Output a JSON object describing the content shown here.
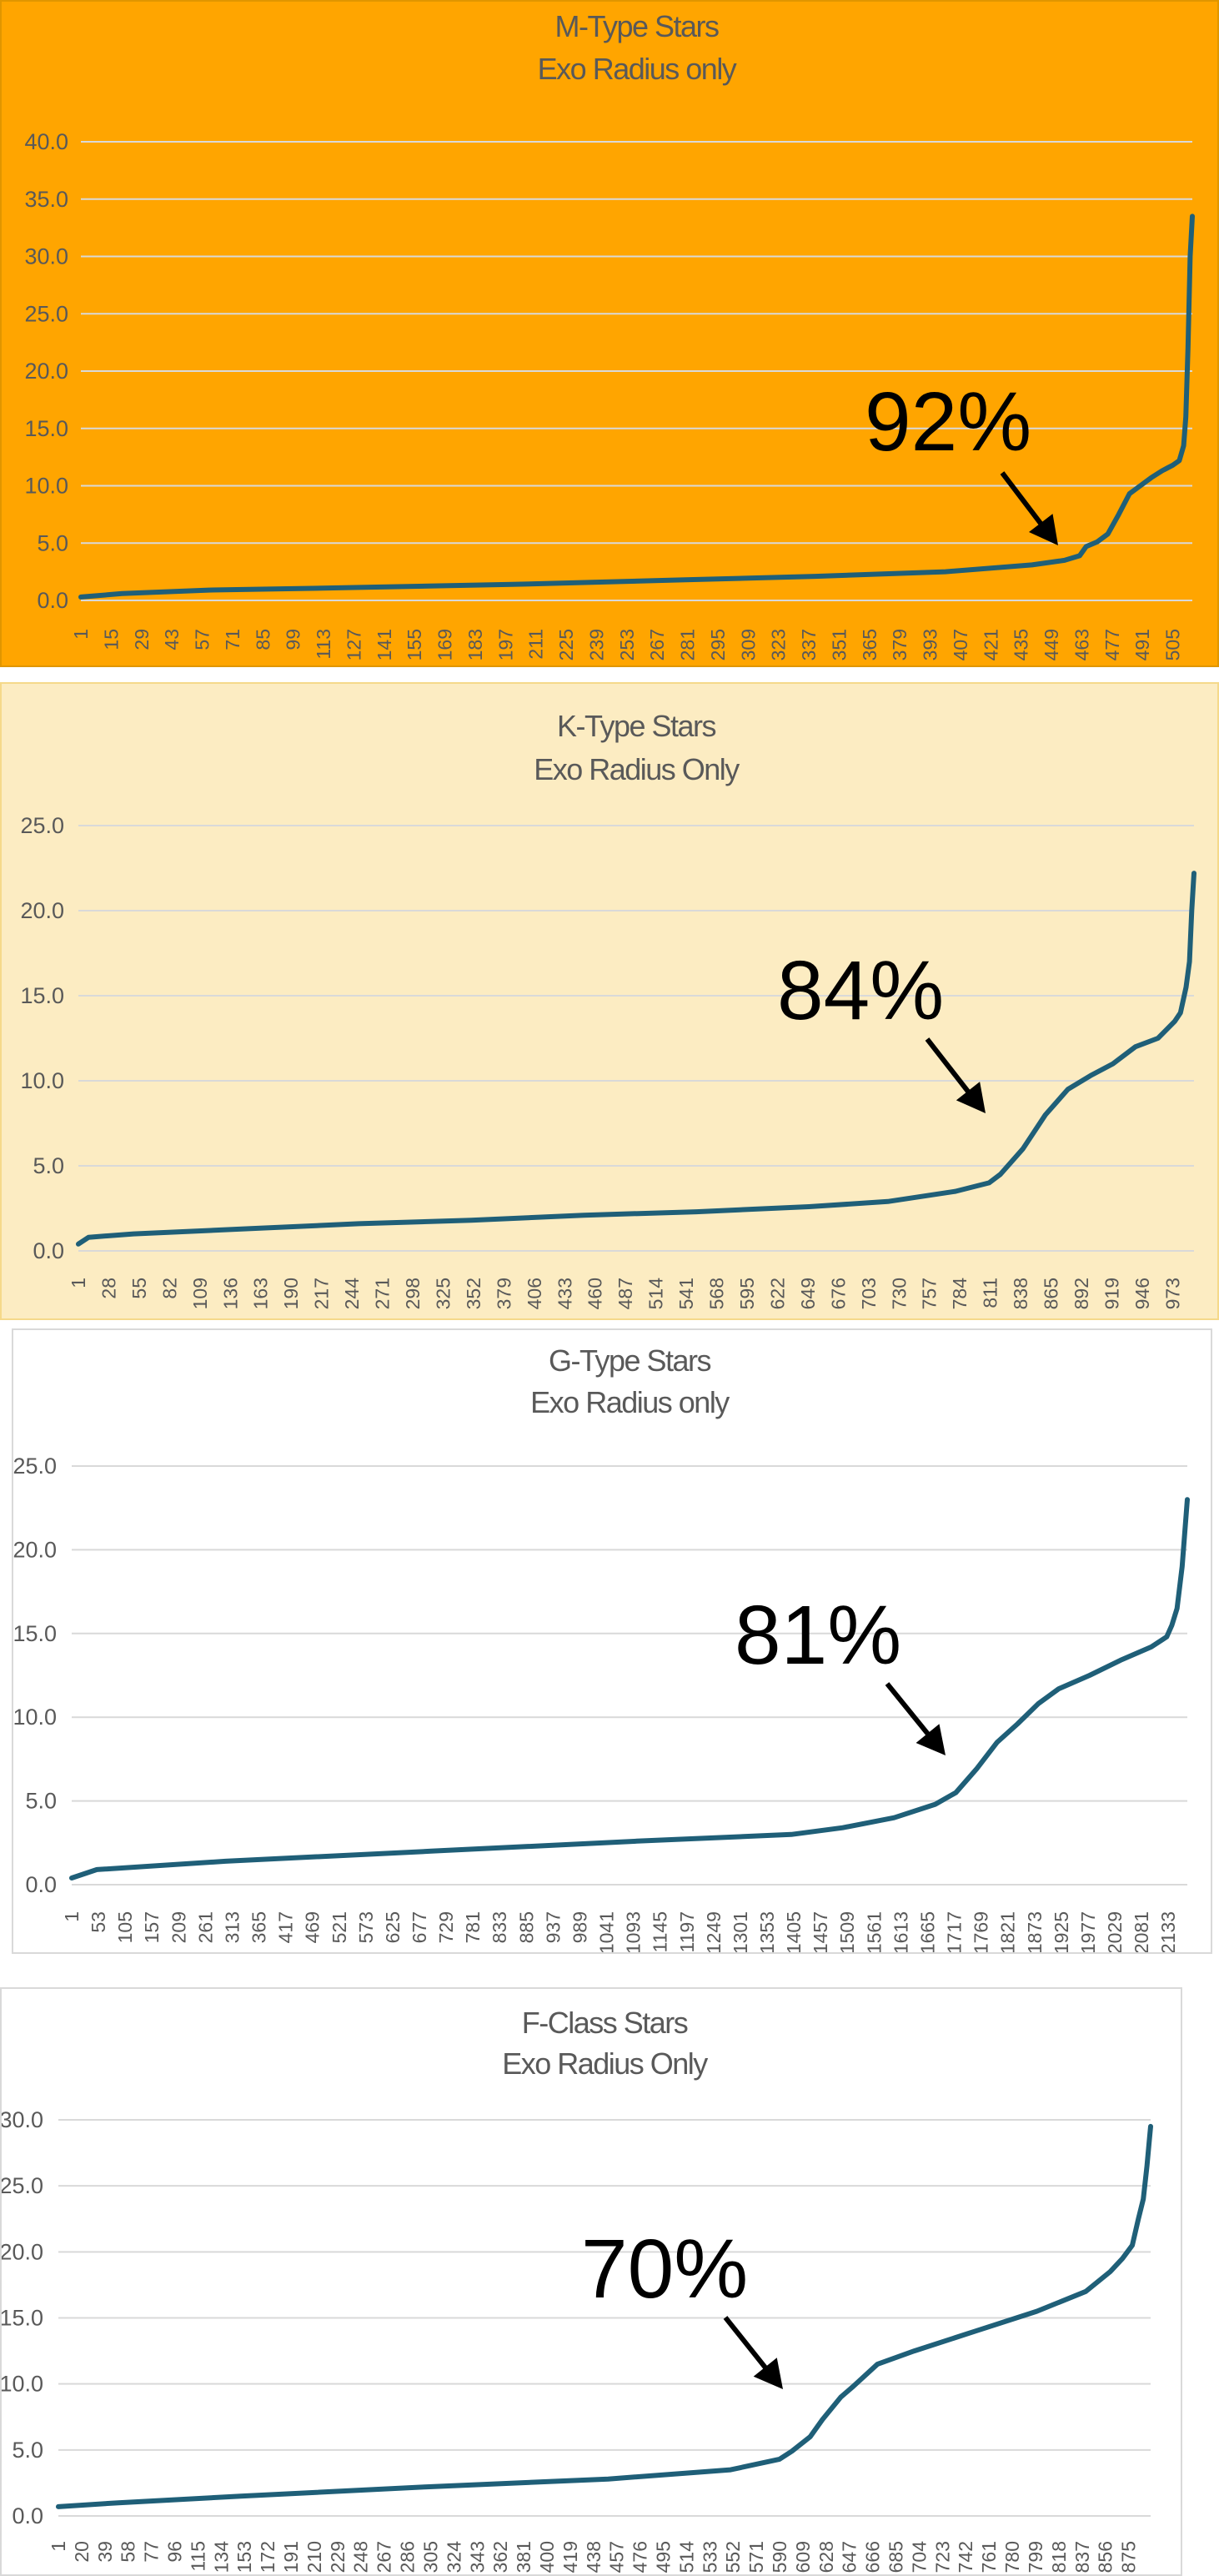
{
  "chart_data": [
    {
      "type": "line",
      "title": "M-Type Stars",
      "subtitle": "Exo Radius only",
      "ylim": [
        0,
        40
      ],
      "y_ticks": [
        "0.0",
        "5.0",
        "10.0",
        "15.0",
        "20.0",
        "25.0",
        "30.0",
        "35.0",
        "40.0"
      ],
      "x_ticks": [
        "1",
        "15",
        "29",
        "43",
        "57",
        "71",
        "85",
        "99",
        "113",
        "127",
        "141",
        "155",
        "169",
        "183",
        "197",
        "211",
        "225",
        "239",
        "253",
        "267",
        "281",
        "295",
        "309",
        "323",
        "337",
        "351",
        "365",
        "379",
        "393",
        "407",
        "421",
        "435",
        "449",
        "463",
        "477",
        "491",
        "505"
      ],
      "x_range": [
        1,
        514
      ],
      "series": [
        {
          "x": [
            1,
            20,
            60,
            120,
            200,
            280,
            340,
            400,
            440,
            455,
            462,
            465,
            470,
            475,
            480,
            485,
            490,
            495,
            500,
            505,
            508,
            510,
            511,
            512,
            513,
            514
          ],
          "values": [
            0.3,
            0.6,
            0.9,
            1.1,
            1.4,
            1.8,
            2.1,
            2.5,
            3.1,
            3.5,
            3.9,
            4.7,
            5.1,
            5.8,
            7.5,
            9.3,
            10.0,
            10.7,
            11.3,
            11.8,
            12.2,
            13.5,
            16.0,
            22.0,
            30.0,
            33.5
          ]
        }
      ],
      "annotation": {
        "text": "92%",
        "x": 461,
        "y": 3.8
      },
      "grid": true,
      "background": "#ffa500",
      "line_color": "#1f5f78"
    },
    {
      "type": "line",
      "title": "K-Type Stars",
      "subtitle": "Exo Radius Only",
      "ylim": [
        0,
        25
      ],
      "y_ticks": [
        "0.0",
        "5.0",
        "10.0",
        "15.0",
        "20.0",
        "25.0"
      ],
      "x_ticks": [
        "1",
        "28",
        "55",
        "82",
        "109",
        "136",
        "163",
        "190",
        "217",
        "244",
        "271",
        "298",
        "325",
        "352",
        "379",
        "406",
        "433",
        "460",
        "487",
        "514",
        "541",
        "568",
        "595",
        "622",
        "649",
        "676",
        "703",
        "730",
        "757",
        "784",
        "811",
        "838",
        "865",
        "892",
        "919",
        "946",
        "973"
      ],
      "x_range": [
        1,
        992
      ],
      "series": [
        {
          "x": [
            1,
            10,
            50,
            150,
            250,
            350,
            450,
            550,
            650,
            720,
            780,
            810,
            820,
            840,
            860,
            880,
            900,
            920,
            940,
            960,
            975,
            980,
            985,
            988,
            990,
            992
          ],
          "values": [
            0.4,
            0.8,
            1.0,
            1.3,
            1.6,
            1.8,
            2.1,
            2.3,
            2.6,
            2.9,
            3.5,
            4.0,
            4.5,
            6.0,
            8.0,
            9.5,
            10.3,
            11.0,
            12.0,
            12.5,
            13.5,
            14.0,
            15.5,
            17.0,
            20.0,
            22.2
          ]
        }
      ],
      "annotation": {
        "text": "84%",
        "x": 815,
        "y": 4.3
      },
      "grid": true,
      "background": "#fcecc2",
      "line_color": "#1f5f78"
    },
    {
      "type": "line",
      "title": "G-Type Stars",
      "subtitle": "Exo Radius only",
      "ylim": [
        0,
        25
      ],
      "y_ticks": [
        "0.0",
        "5.0",
        "10.0",
        "15.0",
        "20.0",
        "25.0"
      ],
      "x_ticks": [
        "1",
        "53",
        "105",
        "157",
        "209",
        "261",
        "313",
        "365",
        "417",
        "469",
        "521",
        "573",
        "625",
        "677",
        "729",
        "781",
        "833",
        "885",
        "937",
        "989",
        "1041",
        "1093",
        "1145",
        "1197",
        "1249",
        "1301",
        "1353",
        "1405",
        "1457",
        "1509",
        "1561",
        "1613",
        "1665",
        "1717",
        "1769",
        "1821",
        "1873",
        "1925",
        "1977",
        "2029",
        "2081",
        "2133"
      ],
      "x_range": [
        1,
        2170
      ],
      "series": [
        {
          "x": [
            1,
            50,
            300,
            700,
            1100,
            1400,
            1500,
            1600,
            1680,
            1720,
            1760,
            1800,
            1840,
            1880,
            1920,
            1980,
            2040,
            2100,
            2130,
            2140,
            2150,
            2160,
            2165,
            2170
          ],
          "values": [
            0.4,
            0.9,
            1.4,
            2.0,
            2.6,
            3.0,
            3.4,
            4.0,
            4.8,
            5.5,
            6.9,
            8.5,
            9.6,
            10.8,
            11.7,
            12.5,
            13.4,
            14.2,
            14.8,
            15.5,
            16.5,
            19.0,
            21.0,
            23.0
          ]
        }
      ],
      "annotation": {
        "text": "81%",
        "x": 1700,
        "y": 4.6
      },
      "grid": true,
      "background": "#ffffff",
      "line_color": "#1f5f78"
    },
    {
      "type": "line",
      "title": "F-Class Stars",
      "subtitle": "Exo Radius Only",
      "ylim": [
        0,
        30
      ],
      "y_ticks": [
        "0.0",
        "5.0",
        "10.0",
        "15.0",
        "20.0",
        "25.0",
        "30.0"
      ],
      "x_ticks": [
        "1",
        "20",
        "39",
        "58",
        "77",
        "96",
        "115",
        "134",
        "153",
        "172",
        "191",
        "210",
        "229",
        "248",
        "267",
        "286",
        "305",
        "324",
        "343",
        "362",
        "381",
        "400",
        "419",
        "438",
        "457",
        "476",
        "495",
        "514",
        "533",
        "552",
        "571",
        "590",
        "609",
        "628",
        "647",
        "666",
        "685",
        "704",
        "723",
        "742",
        "761",
        "780",
        "799",
        "818",
        "837",
        "856",
        "875"
      ],
      "x_range": [
        1,
        893
      ],
      "series": [
        {
          "x": [
            1,
            50,
            150,
            300,
            450,
            550,
            590,
            600,
            615,
            625,
            640,
            650,
            670,
            700,
            750,
            800,
            840,
            860,
            870,
            878,
            883,
            887,
            890,
            892,
            893
          ],
          "values": [
            0.7,
            1.0,
            1.5,
            2.2,
            2.8,
            3.5,
            4.3,
            4.9,
            6.0,
            7.3,
            9.0,
            9.8,
            11.5,
            12.5,
            14.0,
            15.5,
            17.0,
            18.5,
            19.5,
            20.5,
            22.5,
            24.0,
            26.5,
            28.5,
            29.5
          ]
        }
      ],
      "annotation": {
        "text": "70%",
        "x": 597,
        "y": 4.8
      },
      "grid": true,
      "background": "#ffffff",
      "line_color": "#1f5f78"
    }
  ]
}
